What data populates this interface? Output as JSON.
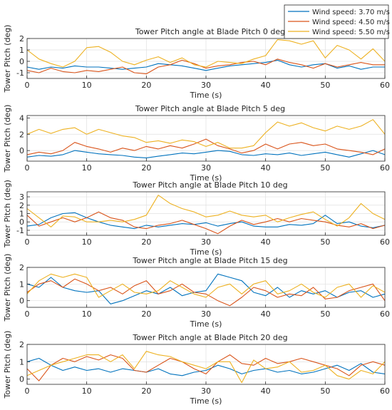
{
  "legend": {
    "placement": "top-right",
    "entries": [
      {
        "label": "Wind speed: 3.70 m/s",
        "color": "#0072BD"
      },
      {
        "label": "Wind speed: 4.50 m/s",
        "color": "#D95319"
      },
      {
        "label": "Wind speed: 5.50 m/s",
        "color": "#EDB120"
      }
    ]
  },
  "chart_data": [
    {
      "type": "line",
      "title": "Tower Pitch angle at Blade Pitch 0 deg",
      "xlabel": "Time (s)",
      "ylabel": "Tower Pitch (deg)",
      "xlim": [
        0,
        60
      ],
      "ylim": [
        -1.5,
        2
      ],
      "xticks": [
        0,
        10,
        20,
        30,
        40,
        50,
        60
      ],
      "yticks": [
        -1,
        0,
        1,
        2
      ],
      "grid": true,
      "x": [
        0,
        2,
        4,
        6,
        8,
        10,
        12,
        14,
        16,
        18,
        20,
        22,
        24,
        26,
        28,
        30,
        32,
        34,
        36,
        38,
        40,
        42,
        44,
        46,
        48,
        50,
        52,
        54,
        56,
        58,
        60
      ],
      "series": [
        {
          "name": "Wind speed: 3.70 m/s",
          "color": "#0072BD",
          "values": [
            -0.5,
            -0.7,
            -0.5,
            -0.6,
            -0.4,
            -0.5,
            -0.5,
            -0.6,
            -0.7,
            -0.6,
            -0.5,
            -0.2,
            -0.3,
            -0.4,
            -0.6,
            -0.8,
            -0.6,
            -0.4,
            -0.3,
            -0.2,
            -0.1,
            0.1,
            -0.3,
            -0.5,
            -0.3,
            -0.2,
            -0.6,
            -0.4,
            -0.7,
            -0.5,
            -0.5
          ]
        },
        {
          "name": "Wind speed: 4.50 m/s",
          "color": "#D95319",
          "values": [
            -0.8,
            -1.0,
            -0.6,
            -0.9,
            -1.0,
            -0.8,
            -0.9,
            -0.7,
            -0.5,
            -1.0,
            -1.1,
            -0.5,
            -0.3,
            0.1,
            -0.2,
            -0.6,
            -0.4,
            -0.3,
            -0.1,
            0.0,
            -0.3,
            0.2,
            -0.1,
            -0.3,
            -0.6,
            -0.2,
            -0.5,
            -0.3,
            -0.1,
            -0.3,
            -0.3
          ]
        },
        {
          "name": "Wind speed: 5.50 m/s",
          "color": "#EDB120",
          "values": [
            1.0,
            0.2,
            -0.2,
            -0.5,
            0.0,
            1.2,
            1.3,
            0.8,
            0.0,
            -0.3,
            0.1,
            0.4,
            -0.1,
            0.3,
            -0.3,
            -0.5,
            0.0,
            -0.1,
            -0.2,
            0.2,
            0.5,
            1.9,
            1.8,
            1.5,
            1.8,
            0.3,
            1.4,
            1.0,
            0.2,
            1.1,
            0.0
          ]
        }
      ]
    },
    {
      "type": "line",
      "title": "Tower Pitch angle at Blade Pitch 5 deg",
      "xlabel": "Time (s)",
      "ylabel": "Tower Pitch (deg)",
      "xlim": [
        0,
        60
      ],
      "ylim": [
        -1.3,
        4.3
      ],
      "xticks": [
        0,
        10,
        20,
        30,
        40,
        50,
        60
      ],
      "yticks": [
        0,
        2,
        4
      ],
      "grid": true,
      "x": [
        0,
        2,
        4,
        6,
        8,
        10,
        12,
        14,
        16,
        18,
        20,
        22,
        24,
        26,
        28,
        30,
        32,
        34,
        36,
        38,
        40,
        42,
        44,
        46,
        48,
        50,
        52,
        54,
        56,
        58,
        60
      ],
      "series": [
        {
          "name": "Wind speed: 3.70 m/s",
          "color": "#0072BD",
          "values": [
            -0.8,
            -0.6,
            -0.7,
            -0.5,
            0.0,
            -0.2,
            -0.4,
            -0.5,
            -0.6,
            -0.8,
            -0.9,
            -0.7,
            -0.5,
            -0.3,
            -0.4,
            -0.2,
            0.0,
            -0.1,
            -0.5,
            -0.6,
            -0.4,
            -0.5,
            -0.3,
            -0.6,
            -0.4,
            -0.2,
            -0.5,
            -0.8,
            -0.4,
            0.0,
            -0.5
          ]
        },
        {
          "name": "Wind speed: 4.50 m/s",
          "color": "#D95319",
          "values": [
            -0.5,
            -0.2,
            -0.4,
            0.0,
            1.0,
            0.5,
            0.2,
            -0.2,
            0.3,
            0.0,
            0.5,
            0.2,
            0.6,
            0.3,
            0.8,
            1.4,
            0.6,
            0.2,
            -0.3,
            0.0,
            0.8,
            0.2,
            0.8,
            1.0,
            0.6,
            0.8,
            0.2,
            0.0,
            -0.2,
            -0.5,
            0.2
          ]
        },
        {
          "name": "Wind speed: 5.50 m/s",
          "color": "#EDB120",
          "values": [
            2.0,
            2.6,
            2.1,
            2.6,
            2.8,
            2.0,
            2.6,
            2.2,
            1.8,
            1.6,
            1.0,
            1.2,
            0.9,
            1.3,
            1.1,
            0.5,
            1.0,
            0.3,
            0.3,
            0.6,
            2.2,
            3.5,
            3.0,
            3.4,
            2.8,
            2.4,
            3.0,
            2.6,
            3.0,
            3.8,
            2.0
          ]
        }
      ]
    },
    {
      "type": "line",
      "title": "Tower Pitch angle at Blade Pitch 10 deg",
      "xlabel": "Time (s)",
      "ylabel": "Tower Pitch (deg)",
      "xlim": [
        0,
        60
      ],
      "ylim": [
        -1.6,
        3.6
      ],
      "xticks": [
        0,
        10,
        20,
        30,
        40,
        50,
        60
      ],
      "yticks": [
        -1,
        0,
        1,
        2,
        3
      ],
      "grid": true,
      "x": [
        0,
        2,
        4,
        6,
        8,
        10,
        12,
        14,
        16,
        18,
        20,
        22,
        24,
        26,
        28,
        30,
        32,
        34,
        36,
        38,
        40,
        42,
        44,
        46,
        48,
        50,
        52,
        54,
        56,
        58,
        60
      ],
      "series": [
        {
          "name": "Wind speed: 3.70 m/s",
          "color": "#0072BD",
          "values": [
            -0.5,
            -0.3,
            0.5,
            1.0,
            1.1,
            0.5,
            0.0,
            -0.4,
            -0.6,
            -0.8,
            -0.4,
            -0.6,
            -0.4,
            -0.2,
            -0.3,
            -0.1,
            -0.5,
            -0.2,
            0.0,
            -0.5,
            -0.6,
            -0.6,
            -0.3,
            -0.4,
            -0.2,
            0.8,
            -0.2,
            0.0,
            -0.5,
            -0.7,
            -0.4
          ]
        },
        {
          "name": "Wind speed: 4.50 m/s",
          "color": "#D95319",
          "values": [
            0.8,
            -0.5,
            0.0,
            0.5,
            0.0,
            0.5,
            1.2,
            0.5,
            0.2,
            -0.6,
            -0.8,
            -0.4,
            -0.2,
            0.2,
            -0.3,
            -0.8,
            -1.4,
            -0.5,
            0.2,
            -0.3,
            0.0,
            0.4,
            0.0,
            0.4,
            0.2,
            0.0,
            -0.4,
            -0.6,
            -0.2,
            -0.8,
            -0.4
          ]
        },
        {
          "name": "Wind speed: 5.50 m/s",
          "color": "#EDB120",
          "values": [
            1.6,
            0.5,
            -0.6,
            0.7,
            0.6,
            0.0,
            0.0,
            0.2,
            0.0,
            0.3,
            0.8,
            3.2,
            2.2,
            1.6,
            1.2,
            0.6,
            0.8,
            1.3,
            0.8,
            0.6,
            0.8,
            0.0,
            0.5,
            0.9,
            1.2,
            0.3,
            -0.5,
            0.5,
            2.2,
            1.0,
            0.3
          ]
        }
      ]
    },
    {
      "type": "line",
      "title": "Tower Pitch angle at Blade Pitch 15 deg",
      "xlabel": "Time (s)",
      "ylabel": "Tower Pitch (deg)",
      "xlim": [
        0,
        60
      ],
      "ylim": [
        -0.4,
        2.0
      ],
      "xticks": [
        0,
        10,
        20,
        30,
        40,
        50,
        60
      ],
      "yticks": [
        0,
        1,
        2
      ],
      "grid": true,
      "x": [
        0,
        2,
        4,
        6,
        8,
        10,
        12,
        14,
        16,
        18,
        20,
        22,
        24,
        26,
        28,
        30,
        32,
        34,
        36,
        38,
        40,
        42,
        44,
        46,
        48,
        50,
        52,
        54,
        56,
        58,
        60
      ],
      "series": [
        {
          "name": "Wind speed: 3.70 m/s",
          "color": "#0072BD",
          "values": [
            1.0,
            0.8,
            1.4,
            0.8,
            0.6,
            0.5,
            0.6,
            -0.2,
            0.0,
            0.3,
            0.6,
            0.4,
            0.8,
            0.3,
            0.5,
            0.6,
            1.6,
            1.4,
            1.2,
            0.5,
            0.3,
            0.8,
            0.2,
            0.6,
            0.4,
            0.6,
            0.2,
            0.5,
            0.6,
            0.2,
            0.4
          ]
        },
        {
          "name": "Wind speed: 4.50 m/s",
          "color": "#D95319",
          "values": [
            0.5,
            1.0,
            1.2,
            0.8,
            1.3,
            1.0,
            0.6,
            0.8,
            0.4,
            0.9,
            1.2,
            0.4,
            0.6,
            1.0,
            0.5,
            0.4,
            0.0,
            -0.3,
            0.2,
            0.8,
            0.6,
            0.2,
            0.4,
            0.3,
            0.8,
            0.1,
            0.2,
            0.6,
            0.8,
            1.0,
            0.0
          ]
        },
        {
          "name": "Wind speed: 5.50 m/s",
          "color": "#EDB120",
          "values": [
            0.4,
            1.2,
            1.6,
            1.4,
            1.6,
            1.4,
            0.2,
            0.6,
            1.0,
            0.5,
            0.4,
            0.6,
            1.2,
            0.8,
            0.4,
            0.2,
            0.8,
            1.0,
            0.4,
            1.0,
            1.2,
            0.4,
            0.6,
            1.0,
            0.5,
            0.2,
            0.8,
            1.0,
            0.2,
            0.9,
            0.5
          ]
        }
      ]
    },
    {
      "type": "line",
      "title": "Tower Pitch angle at Blade Pitch 20 deg",
      "xlabel": "Time (s)",
      "ylabel": "Tower Pitch (deg)",
      "xlim": [
        0,
        60
      ],
      "ylim": [
        -0.3,
        2.0
      ],
      "xticks": [
        0,
        10,
        20,
        30,
        40,
        50,
        60
      ],
      "yticks": [
        0,
        1,
        2
      ],
      "grid": true,
      "x": [
        0,
        2,
        4,
        6,
        8,
        10,
        12,
        14,
        16,
        18,
        20,
        22,
        24,
        26,
        28,
        30,
        32,
        34,
        36,
        38,
        40,
        42,
        44,
        46,
        48,
        50,
        52,
        54,
        56,
        58,
        60
      ],
      "series": [
        {
          "name": "Wind speed: 3.70 m/s",
          "color": "#0072BD",
          "values": [
            1.0,
            1.2,
            0.8,
            0.5,
            0.7,
            0.5,
            0.6,
            0.4,
            0.6,
            0.5,
            0.4,
            0.6,
            0.3,
            0.2,
            0.4,
            0.5,
            0.8,
            0.6,
            0.3,
            0.5,
            0.6,
            0.4,
            0.5,
            0.3,
            0.4,
            0.6,
            0.8,
            0.5,
            0.9,
            0.4,
            0.3
          ]
        },
        {
          "name": "Wind speed: 4.50 m/s",
          "color": "#D95319",
          "values": [
            0.6,
            -0.1,
            0.8,
            1.2,
            1.0,
            1.3,
            1.1,
            1.4,
            1.2,
            0.5,
            0.4,
            0.8,
            1.2,
            1.0,
            0.6,
            0.3,
            1.0,
            1.4,
            0.9,
            0.8,
            1.2,
            0.9,
            1.0,
            1.2,
            1.0,
            0.8,
            0.6,
            0.2,
            0.8,
            1.0,
            0.8
          ]
        },
        {
          "name": "Wind speed: 5.50 m/s",
          "color": "#EDB120",
          "values": [
            0.2,
            0.5,
            0.8,
            1.0,
            1.2,
            1.4,
            1.4,
            1.0,
            1.4,
            0.6,
            1.6,
            1.4,
            1.3,
            1.0,
            0.8,
            0.6,
            1.0,
            1.0,
            -0.2,
            1.1,
            0.6,
            0.7,
            1.0,
            0.4,
            0.5,
            0.8,
            0.2,
            0.0,
            0.5,
            0.3,
            1.0
          ]
        }
      ]
    }
  ]
}
